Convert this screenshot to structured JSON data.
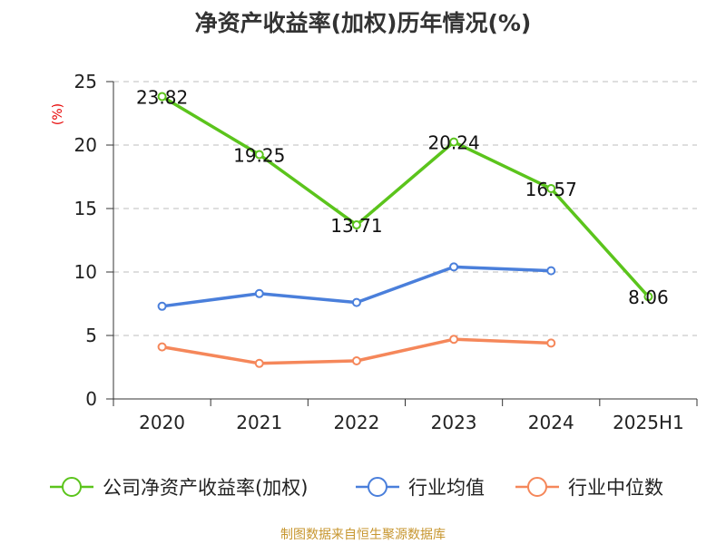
{
  "chart_data": {
    "type": "line",
    "title": "净资产收益率(加权)历年情况(%)",
    "ylabel": "(%)",
    "xlabel": "",
    "categories": [
      "2020",
      "2021",
      "2022",
      "2023",
      "2024",
      "2025H1"
    ],
    "ylim": [
      0,
      25
    ],
    "yticks": [
      0,
      5,
      10,
      15,
      20,
      25
    ],
    "grid": "horizontal dashed",
    "legend_position": "bottom",
    "series": [
      {
        "name": "公司净资产收益率(加权)",
        "color": "#5bc41c",
        "values": [
          23.82,
          19.25,
          13.71,
          20.24,
          16.57,
          8.06
        ],
        "data_labels": [
          "23.82",
          "19.25",
          "13.71",
          "20.24",
          "16.57",
          "8.06"
        ]
      },
      {
        "name": "行业均值",
        "color": "#4a7fdb",
        "values": [
          7.3,
          8.3,
          7.6,
          10.4,
          10.1,
          null
        ]
      },
      {
        "name": "行业中位数",
        "color": "#f5875a",
        "values": [
          4.1,
          2.8,
          3.0,
          4.7,
          4.4,
          null
        ]
      }
    ],
    "source": "制图数据来自恒生聚源数据库"
  }
}
